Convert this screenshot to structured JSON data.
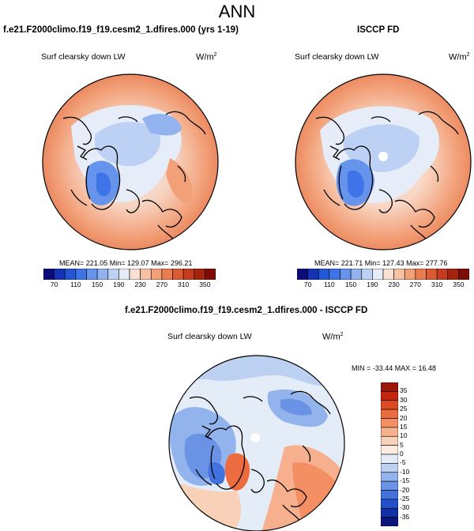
{
  "page": {
    "title": "ANN"
  },
  "panels": {
    "test": {
      "case_title": "f.e21.F2000climo.f19_f19.cesm2_1.dfires.000 (yrs 1-19)",
      "variable": "Surf clearsky down LW",
      "units_base": "W/m",
      "units_exp": "2",
      "stats": "MEAN= 221.05  Min= 129.07  Max= 296.21"
    },
    "reference": {
      "case_title": "ISCCP FD",
      "variable": "Surf clearsky down LW",
      "units_base": "W/m",
      "units_exp": "2",
      "stats": "MEAN= 221.71  Min= 127.43  Max= 277.76"
    },
    "difference": {
      "case_title": "f.e21.F2000climo.f19_f19.cesm2_1.dfires.000 - ISCCP FD",
      "variable": "Surf clearsky down LW",
      "units_base": "W/m",
      "units_exp": "2",
      "stats": "MIN = -33.44  MAX =  16.48"
    }
  },
  "colorbars": {
    "absolute": {
      "labels": [
        "70",
        "110",
        "150",
        "190",
        "230",
        "270",
        "310",
        "350"
      ],
      "colors": [
        "#0a0c7a",
        "#1632b4",
        "#2556d8",
        "#3f74e8",
        "#6694ec",
        "#92b3ef",
        "#bcd1f3",
        "#e6edf8",
        "#f9e0d3",
        "#f7c1a6",
        "#f2a078",
        "#ea7d50",
        "#dc5a31",
        "#c63b1f",
        "#a5220f",
        "#7e0c04"
      ]
    },
    "difference": {
      "labels": [
        "35",
        "30",
        "25",
        "20",
        "15",
        "10",
        "5",
        "0",
        "-5",
        "-10",
        "-15",
        "-20",
        "-25",
        "-30",
        "-35"
      ],
      "colors": [
        "#9a1607",
        "#c2260f",
        "#dc4a24",
        "#ec6c3f",
        "#f38f63",
        "#f6b08d",
        "#f9d0b8",
        "#fbebe0",
        "#e4ecf8",
        "#bcd0f1",
        "#93b3ec",
        "#6a93e6",
        "#4272de",
        "#2450cc",
        "#1231a6",
        "#0b167a"
      ]
    }
  }
}
